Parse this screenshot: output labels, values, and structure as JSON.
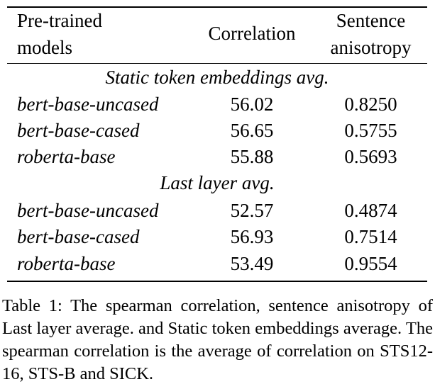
{
  "table": {
    "headers": {
      "model_line1": "Pre-trained",
      "model_line2": "models",
      "correlation": "Correlation",
      "aniso_line1": "Sentence",
      "aniso_line2": "anisotropy"
    },
    "sections": [
      {
        "title": "Static token embeddings avg.",
        "rows": [
          {
            "model": "bert-base-uncased",
            "correlation": "56.02",
            "anisotropy": "0.8250"
          },
          {
            "model": "bert-base-cased",
            "correlation": "56.65",
            "anisotropy": "0.5755"
          },
          {
            "model": "roberta-base",
            "correlation": "55.88",
            "anisotropy": "0.5693"
          }
        ]
      },
      {
        "title": "Last layer avg.",
        "rows": [
          {
            "model": "bert-base-uncased",
            "correlation": "52.57",
            "anisotropy": "0.4874"
          },
          {
            "model": "bert-base-cased",
            "correlation": "56.93",
            "anisotropy": "0.7514"
          },
          {
            "model": "roberta-base",
            "correlation": "53.49",
            "anisotropy": "0.9554"
          }
        ]
      }
    ]
  },
  "caption": "Table 1: The spearman correlation, sentence anisotropy of Last layer average. and Static token embeddings average. The spearman correlation is the average of correlation on STS12-16, STS-B and SICK."
}
